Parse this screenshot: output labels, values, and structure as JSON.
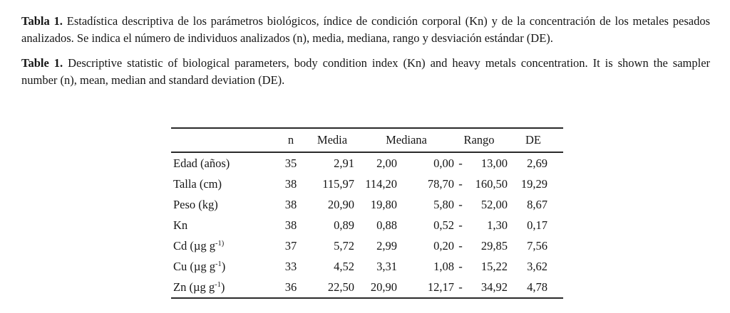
{
  "page": {
    "background": "#ffffff",
    "text_color": "#161616"
  },
  "captions": {
    "spanish": {
      "label": "Tabla 1.",
      "text": "Estadística descriptiva de los parámetros biológicos, índice de condición corporal (Kn) y de la concentración de los metales pesados analizados. Se indica el número de individuos analizados (n), media, mediana, rango y desviación estándar (DE)."
    },
    "english": {
      "label": "Table 1.",
      "text": "Descriptive statistic of biological parameters, body condition index (Kn) and heavy metals concentration. It is shown the sampler number (n), mean, median and standard deviation (DE)."
    }
  },
  "table": {
    "headers": {
      "parameter": "",
      "n": "n",
      "media": "Media",
      "mediana": "Mediana",
      "rango": "Rango",
      "de": "DE"
    },
    "rows": [
      {
        "label": "Edad (años)",
        "label_sup": "",
        "label_close": "",
        "n": "35",
        "media": "2,91",
        "mediana": "2,00",
        "rango_min": "0,00",
        "rango_dash": "-",
        "rango_max": "13,00",
        "de": "2,69"
      },
      {
        "label": "Talla (cm)",
        "label_sup": "",
        "label_close": "",
        "n": "38",
        "media": "115,97",
        "mediana": "114,20",
        "rango_min": "78,70",
        "rango_dash": "-",
        "rango_max": "160,50",
        "de": "19,29"
      },
      {
        "label": "Peso (kg)",
        "label_sup": "",
        "label_close": "",
        "n": "38",
        "media": "20,90",
        "mediana": "19,80",
        "rango_min": "5,80",
        "rango_dash": "-",
        "rango_max": "52,00",
        "de": "8,67"
      },
      {
        "label": "Kn",
        "label_sup": "",
        "label_close": "",
        "n": "38",
        "media": "0,89",
        "mediana": "0,88",
        "rango_min": "0,52",
        "rango_dash": "-",
        "rango_max": "1,30",
        "de": "0,17"
      },
      {
        "label": "Cd (µg g",
        "label_sup": "-1)",
        "label_close": "",
        "n": "37",
        "media": "5,72",
        "mediana": "2,99",
        "rango_min": "0,20",
        "rango_dash": "-",
        "rango_max": "29,85",
        "de": "7,56"
      },
      {
        "label": "Cu (µg g",
        "label_sup": "-1",
        "label_close": ")",
        "n": "33",
        "media": "4,52",
        "mediana": "3,31",
        "rango_min": "1,08",
        "rango_dash": "-",
        "rango_max": "15,22",
        "de": "3,62"
      },
      {
        "label": "Zn (µg g",
        "label_sup": "-1",
        "label_close": ")",
        "n": "36",
        "media": "22,50",
        "mediana": "20,90",
        "rango_min": "12,17",
        "rango_dash": "-",
        "rango_max": "34,92",
        "de": "4,78"
      }
    ]
  },
  "chart_data": {
    "type": "table",
    "columns": [
      "",
      "n",
      "Media",
      "Mediana",
      "Rango",
      "DE"
    ],
    "rows": [
      [
        "Edad (años)",
        "35",
        "2,91",
        "2,00",
        "0,00 - 13,00",
        "2,69"
      ],
      [
        "Talla (cm)",
        "38",
        "115,97",
        "114,20",
        "78,70 - 160,50",
        "19,29"
      ],
      [
        "Peso (kg)",
        "38",
        "20,90",
        "19,80",
        "5,80 - 52,00",
        "8,67"
      ],
      [
        "Kn",
        "38",
        "0,89",
        "0,88",
        "0,52 - 1,30",
        "0,17"
      ],
      [
        "Cd (µg g-1)",
        "37",
        "5,72",
        "2,99",
        "0,20 - 29,85",
        "7,56"
      ],
      [
        "Cu (µg g-1)",
        "33",
        "4,52",
        "3,31",
        "1,08 - 15,22",
        "3,62"
      ],
      [
        "Zn (µg g-1)",
        "36",
        "22,50",
        "20,90",
        "12,17 - 34,92",
        "4,78"
      ]
    ]
  }
}
